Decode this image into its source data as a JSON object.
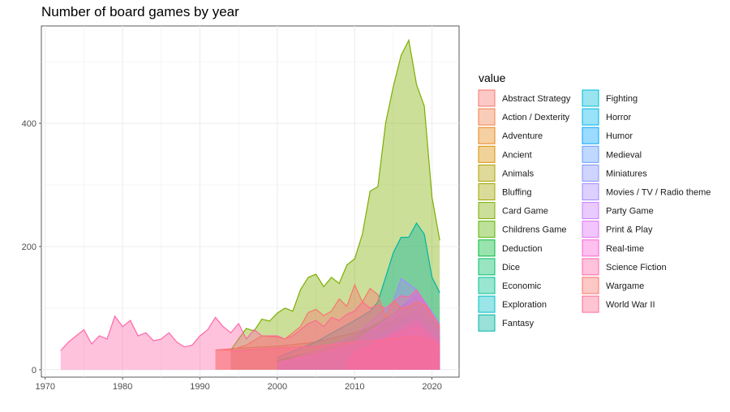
{
  "chart_data": {
    "type": "area",
    "title": "Number of board games by year",
    "xlabel": "",
    "ylabel": "",
    "xlim": [
      1969.5,
      2023.5
    ],
    "ylim": [
      -12,
      558
    ],
    "x_ticks": [
      1970,
      1980,
      1990,
      2000,
      2010,
      2020
    ],
    "y_ticks": [
      0,
      200,
      400
    ],
    "legend": {
      "title": "value",
      "placement": "right"
    },
    "grid": true,
    "series": [
      {
        "name": "Abstract Strategy",
        "color": "#F8766D",
        "x": [
          1992,
          1995,
          2000,
          2005,
          2010,
          2015,
          2018,
          2021
        ],
        "y": [
          32,
          35,
          38,
          45,
          60,
          80,
          90,
          55
        ]
      },
      {
        "name": "Action / Dexterity",
        "color": "#F17F4A",
        "x": [
          2000,
          2005,
          2010,
          2015,
          2018,
          2021
        ],
        "y": [
          15,
          25,
          40,
          60,
          80,
          45
        ]
      },
      {
        "name": "Adventure",
        "color": "#E8861A",
        "x": [
          2000,
          2005,
          2010,
          2015,
          2018,
          2021
        ],
        "y": [
          10,
          20,
          35,
          55,
          70,
          40
        ]
      },
      {
        "name": "Ancient",
        "color": "#DB8E00",
        "x": [
          2000,
          2005,
          2010,
          2015,
          2018,
          2021
        ],
        "y": [
          12,
          22,
          30,
          50,
          65,
          40
        ]
      },
      {
        "name": "Animals",
        "color": "#AEA200",
        "x": [
          2000,
          2005,
          2010,
          2015,
          2018,
          2021
        ],
        "y": [
          10,
          20,
          32,
          55,
          75,
          45
        ]
      },
      {
        "name": "Bluffing",
        "color": "#A3A500",
        "x": [
          2000,
          2005,
          2010,
          2015,
          2018,
          2021
        ],
        "y": [
          12,
          22,
          40,
          65,
          85,
          50
        ]
      },
      {
        "name": "Card Game",
        "color": "#7CAE00",
        "x": [
          1994,
          1995,
          1996,
          1997,
          1998,
          1999,
          2000,
          2001,
          2002,
          2003,
          2004,
          2005,
          2006,
          2007,
          2008,
          2009,
          2010,
          2011,
          2012,
          2013,
          2014,
          2015,
          2016,
          2017,
          2018,
          2019,
          2020,
          2021
        ],
        "y": [
          32,
          50,
          67,
          63,
          82,
          79,
          92,
          100,
          95,
          130,
          150,
          155,
          135,
          150,
          140,
          170,
          180,
          220,
          290,
          297,
          400,
          460,
          510,
          535,
          463,
          428,
          280,
          210
        ]
      },
      {
        "name": "Childrens Game",
        "color": "#5BB300",
        "x": [
          2000,
          2005,
          2010,
          2015,
          2018,
          2021
        ],
        "y": [
          15,
          30,
          55,
          90,
          120,
          70
        ]
      },
      {
        "name": "Deduction",
        "color": "#00BA38",
        "x": [
          2000,
          2005,
          2010,
          2015,
          2018,
          2021
        ],
        "y": [
          10,
          18,
          30,
          55,
          75,
          40
        ]
      },
      {
        "name": "Dice",
        "color": "#00BE67",
        "x": [
          2000,
          2005,
          2010,
          2015,
          2018,
          2021
        ],
        "y": [
          14,
          26,
          45,
          80,
          110,
          65
        ]
      },
      {
        "name": "Economic",
        "color": "#00C08B",
        "x": [
          2000,
          2005,
          2010,
          2015,
          2018,
          2021
        ],
        "y": [
          12,
          24,
          40,
          70,
          95,
          55
        ]
      },
      {
        "name": "Exploration",
        "color": "#00BFC4",
        "x": [
          2000,
          2005,
          2010,
          2015,
          2018,
          2021
        ],
        "y": [
          8,
          16,
          28,
          50,
          70,
          40
        ]
      },
      {
        "name": "Fantasy",
        "color": "#00B4A0",
        "x": [
          2000,
          2005,
          2010,
          2012,
          2013,
          2014,
          2015,
          2016,
          2017,
          2018,
          2019,
          2020,
          2021
        ],
        "y": [
          20,
          45,
          80,
          95,
          110,
          150,
          190,
          215,
          215,
          238,
          220,
          150,
          125
        ]
      },
      {
        "name": "Fighting",
        "color": "#00BCD8",
        "x": [
          2000,
          2005,
          2010,
          2015,
          2018,
          2021
        ],
        "y": [
          10,
          20,
          35,
          65,
          90,
          50
        ]
      },
      {
        "name": "Horror",
        "color": "#00B6EB",
        "x": [
          2000,
          2005,
          2010,
          2015,
          2018,
          2021
        ],
        "y": [
          8,
          15,
          25,
          45,
          60,
          35
        ]
      },
      {
        "name": "Humor",
        "color": "#06A4FF",
        "x": [
          2000,
          2005,
          2010,
          2015,
          2018,
          2021
        ],
        "y": [
          10,
          18,
          30,
          55,
          75,
          45
        ]
      },
      {
        "name": "Medieval",
        "color": "#619CFF",
        "x": [
          2000,
          2005,
          2010,
          2015,
          2018,
          2021
        ],
        "y": [
          12,
          22,
          40,
          70,
          95,
          55
        ]
      },
      {
        "name": "Miniatures",
        "color": "#8494FF",
        "x": [
          2000,
          2005,
          2010,
          2015,
          2018,
          2021
        ],
        "y": [
          10,
          25,
          45,
          90,
          125,
          70
        ]
      },
      {
        "name": "Movies / TV / Radio theme",
        "color": "#A58AFF",
        "x": [
          2000,
          2005,
          2010,
          2015,
          2016,
          2018,
          2021
        ],
        "y": [
          10,
          30,
          55,
          110,
          148,
          130,
          75
        ]
      },
      {
        "name": "Party Game",
        "color": "#C77CFF",
        "x": [
          2000,
          2005,
          2010,
          2015,
          2018,
          2021
        ],
        "y": [
          12,
          25,
          45,
          85,
          120,
          70
        ]
      },
      {
        "name": "Print & Play",
        "color": "#DF70F8",
        "x": [
          2009,
          2010,
          2012,
          2015,
          2018,
          2021
        ],
        "y": [
          10,
          30,
          40,
          60,
          80,
          45
        ]
      },
      {
        "name": "Real-time",
        "color": "#FB61D7",
        "x": [
          2009,
          2010,
          2012,
          2015,
          2018,
          2021
        ],
        "y": [
          10,
          25,
          35,
          55,
          70,
          40
        ]
      },
      {
        "name": "Science Fiction",
        "color": "#FF66A8",
        "x": [
          1972,
          1973,
          1974,
          1975,
          1976,
          1977,
          1978,
          1979,
          1980,
          1981,
          1982,
          1983,
          1984,
          1985,
          1986,
          1987,
          1988,
          1989,
          1990,
          1991,
          1992,
          1993,
          1994,
          1995,
          1996,
          1997,
          1998,
          1999,
          2000,
          2001,
          2002,
          2003,
          2004,
          2005,
          2006,
          2007,
          2008,
          2009,
          2010,
          2011,
          2012,
          2013,
          2014,
          2015,
          2016,
          2017,
          2018,
          2019,
          2020,
          2021
        ],
        "y": [
          31,
          45,
          55,
          65,
          42,
          55,
          50,
          87,
          70,
          80,
          55,
          60,
          47,
          50,
          60,
          45,
          37,
          40,
          55,
          65,
          85,
          70,
          60,
          75,
          50,
          65,
          55,
          55,
          55,
          50,
          55,
          65,
          75,
          80,
          70,
          85,
          80,
          90,
          95,
          110,
          100,
          105,
          100,
          110,
          120,
          118,
          130,
          110,
          90,
          70
        ]
      },
      {
        "name": "Wargame",
        "color": "#F8766D",
        "x": [
          1992,
          1994,
          1996,
          1998,
          2000,
          2001,
          2002,
          2003,
          2004,
          2005,
          2006,
          2007,
          2008,
          2009,
          2010,
          2011,
          2012,
          2013,
          2014,
          2015,
          2016,
          2017,
          2018,
          2019,
          2020,
          2021
        ],
        "y": [
          32,
          32,
          40,
          55,
          53,
          50,
          60,
          70,
          93,
          98,
          88,
          95,
          115,
          103,
          138,
          110,
          132,
          122,
          85,
          112,
          100,
          102,
          110,
          105,
          90,
          70
        ]
      },
      {
        "name": "World War II",
        "color": "#FF6C91",
        "x": [
          1994,
          1996,
          2000,
          2005,
          2010,
          2015,
          2018,
          2021
        ],
        "y": [
          30,
          32,
          35,
          38,
          45,
          50,
          55,
          40
        ]
      }
    ]
  }
}
